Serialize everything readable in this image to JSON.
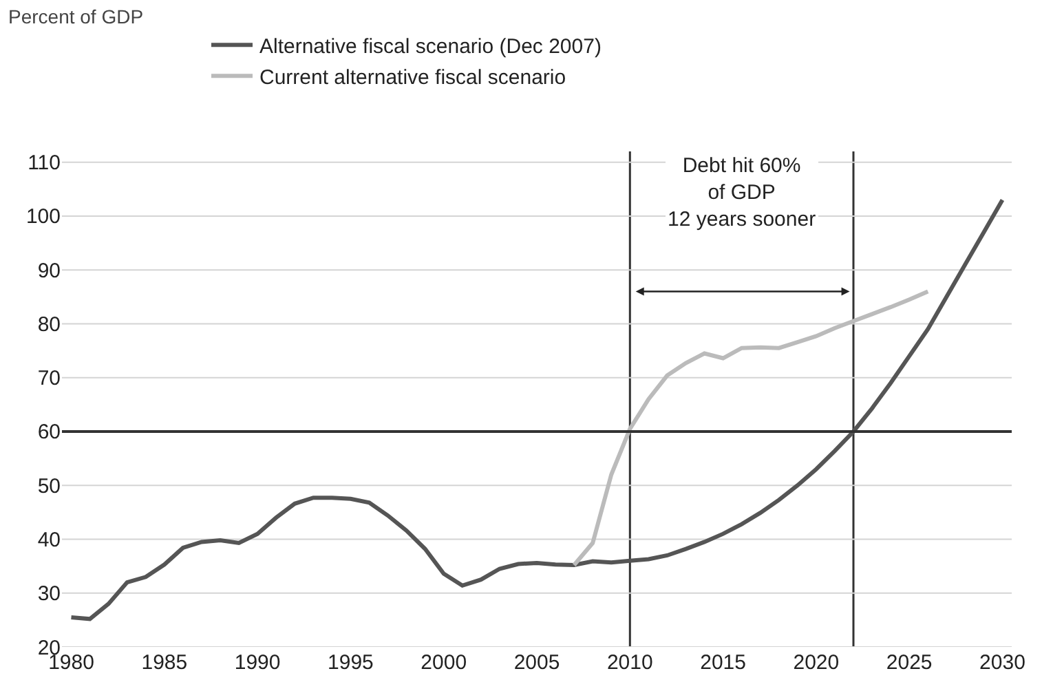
{
  "chart_data": {
    "type": "line",
    "x": [
      1980,
      1981,
      1982,
      1983,
      1984,
      1985,
      1986,
      1987,
      1988,
      1989,
      1990,
      1991,
      1992,
      1993,
      1994,
      1995,
      1996,
      1997,
      1998,
      1999,
      2000,
      2001,
      2002,
      2003,
      2004,
      2005,
      2006,
      2007,
      2008,
      2009,
      2010,
      2011,
      2012,
      2013,
      2014,
      2015,
      2016,
      2017,
      2018,
      2019,
      2020,
      2021,
      2022,
      2023,
      2024,
      2025,
      2026,
      2027,
      2028,
      2029,
      2030
    ],
    "series": [
      {
        "name": "Alternative fiscal scenario (Dec 2007)",
        "color": "#555555",
        "values": [
          25.5,
          25.2,
          28,
          32,
          33,
          35.3,
          38.4,
          39.5,
          39.8,
          39.3,
          41,
          44,
          46.6,
          47.7,
          47.7,
          47.5,
          46.8,
          44.4,
          41.6,
          38.2,
          33.6,
          31.4,
          32.5,
          34.5,
          35.4,
          35.6,
          35.3,
          35.2,
          35.9,
          35.7,
          36,
          36.3,
          37,
          38.2,
          39.5,
          41,
          42.8,
          44.9,
          47.3,
          50,
          53,
          56.4,
          60,
          64.3,
          69,
          74,
          79,
          85,
          91,
          97,
          103
        ]
      },
      {
        "name": "Current alternative fiscal scenario",
        "color": "#bbbbbb",
        "x": [
          2007,
          2008,
          2009,
          2010,
          2011,
          2012,
          2013,
          2014,
          2015,
          2016,
          2017,
          2018,
          2019,
          2020,
          2021,
          2022,
          2023,
          2024,
          2025,
          2026
        ],
        "values": [
          35.2,
          39.3,
          52,
          60.5,
          66,
          70.4,
          72.7,
          74.5,
          73.6,
          75.5,
          75.6,
          75.5,
          76.6,
          77.7,
          79.2,
          80.5,
          81.8,
          83.1,
          84.5,
          86
        ]
      }
    ],
    "xlim": [
      1979.5,
      2030.5
    ],
    "xticks": [
      1980,
      1985,
      1990,
      1995,
      2000,
      2005,
      2010,
      2015,
      2020,
      2025,
      2030
    ],
    "ylim": [
      20,
      112
    ],
    "yticks": [
      20,
      30,
      40,
      50,
      60,
      70,
      80,
      90,
      100,
      110
    ],
    "ref_lines": [
      {
        "axis": "y",
        "value": 60,
        "color": "#333333"
      },
      {
        "axis": "x",
        "value": 2010,
        "color": "#333333"
      },
      {
        "axis": "x",
        "value": 2022,
        "color": "#333333"
      }
    ],
    "annotations": [
      "Percent of GDP",
      "Debt hit 60%\nof GDP\n12 years sooner"
    ],
    "grid": "y",
    "legend": "top left",
    "marker": "none",
    "line_style": "solid"
  }
}
